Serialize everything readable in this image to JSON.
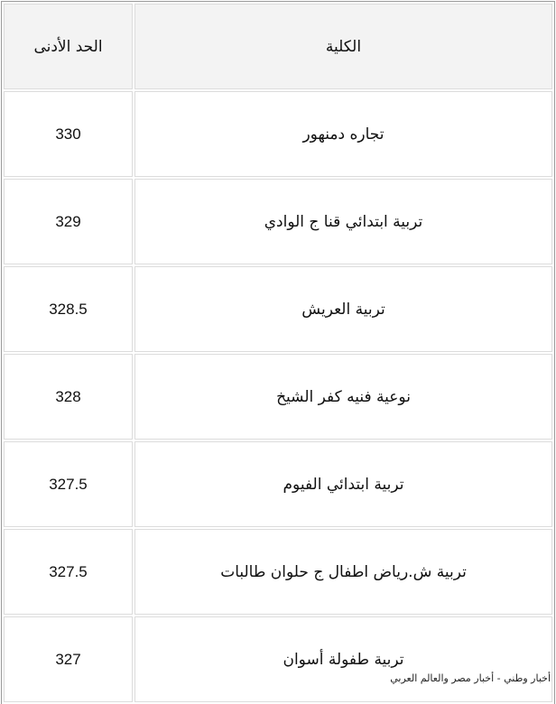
{
  "table": {
    "headers": {
      "college": "الكلية",
      "min_score": "الحد الأدنى"
    },
    "rows": [
      {
        "college": "تجاره دمنهور",
        "min_score": "330"
      },
      {
        "college": "تربية ابتدائي قنا ج الوادي",
        "min_score": "329"
      },
      {
        "college": "تربية العريش",
        "min_score": "328.5"
      },
      {
        "college": "نوعية فنيه كفر الشيخ",
        "min_score": "328"
      },
      {
        "college": "تربية ابتدائي الفيوم",
        "min_score": "327.5"
      },
      {
        "college": "تربية ش.رياض اطفال ج حلوان طالبات",
        "min_score": "327.5"
      },
      {
        "college": "تربية طفولة أسوان",
        "min_score": "327"
      }
    ]
  },
  "watermark": "أخبار وطني - أخبار مصر والعالم العربي"
}
